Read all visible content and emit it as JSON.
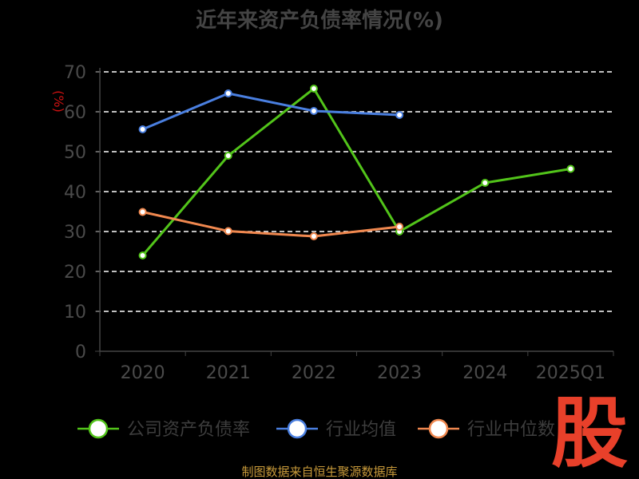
{
  "chart_data": {
    "type": "line",
    "title": "近年来资产负债率情况(%)",
    "ylabel": "(%)",
    "xlabel": "",
    "categories": [
      "2020",
      "2021",
      "2022",
      "2023",
      "2024",
      "2025Q1"
    ],
    "y_ticks": [
      "0",
      "10",
      "20",
      "30",
      "40",
      "50",
      "60",
      "70"
    ],
    "ylim": [
      0,
      70
    ],
    "grid": "horizontal dashed",
    "legend_position": "bottom",
    "series": [
      {
        "name": "公司资产负债率",
        "color": "#52c41a",
        "values": [
          24.0,
          49.0,
          65.8,
          30.0,
          42.2,
          45.7
        ]
      },
      {
        "name": "行业均值",
        "color": "#4a7fe0",
        "values": [
          55.6,
          64.6,
          60.2,
          59.2,
          null,
          null
        ]
      },
      {
        "name": "行业中位数",
        "color": "#f0884f",
        "values": [
          34.9,
          30.1,
          28.8,
          31.2,
          null,
          null
        ]
      }
    ]
  },
  "footer": {
    "source": "制图数据来自恒生聚源数据库"
  },
  "watermark": {
    "text": "股"
  }
}
